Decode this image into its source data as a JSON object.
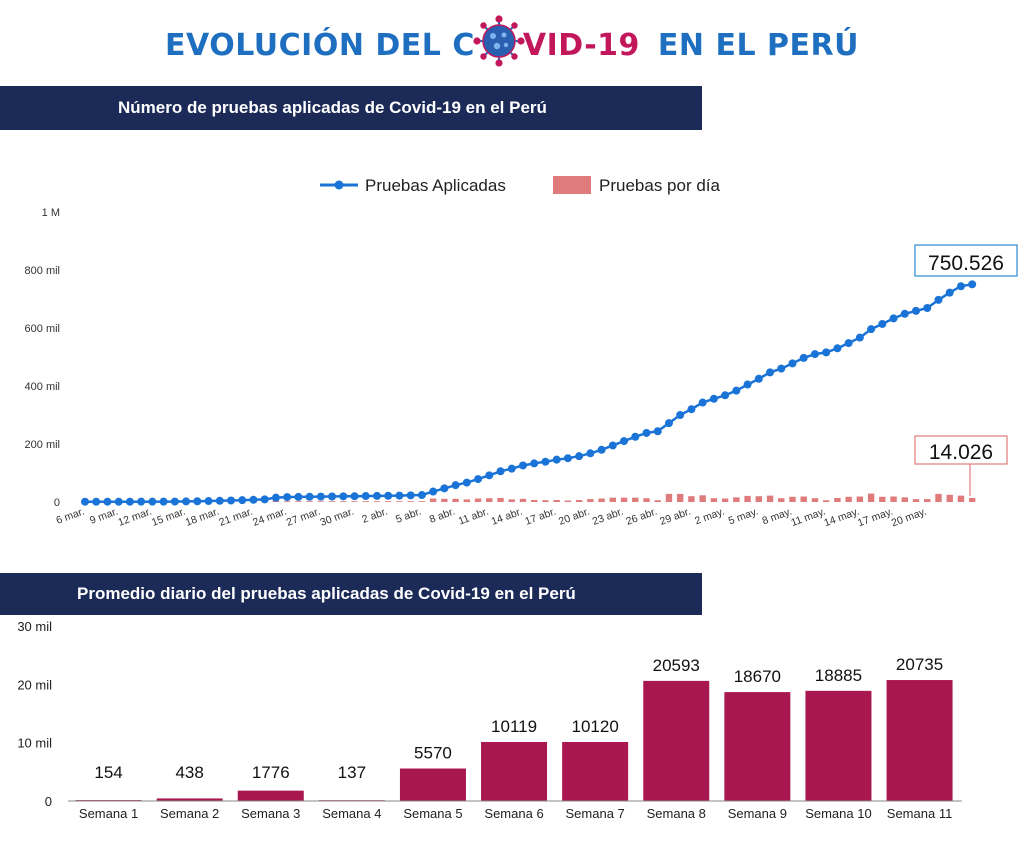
{
  "header": {
    "title_part1": "EVOLUCIÓN DEL C",
    "title_part2": "VID-19",
    "title_part3": "EN EL PERÚ"
  },
  "colors": {
    "navy_band": "#1c2a57",
    "title_blue": "#1f6fc0",
    "title_magenta": "#c2185b",
    "line_blue": "#1a73d6",
    "bar_salmon": "#e07b7b",
    "bar_magenta": "#a8174f"
  },
  "section1": {
    "title": "Número de pruebas aplicadas de Covid-19 en el Perú"
  },
  "section2": {
    "title": "Promedio diario del pruebas  aplicadas de Covid-19 en el Perú"
  },
  "chart_data": [
    {
      "type": "line",
      "title": "Número de pruebas aplicadas de Covid-19 en el Perú",
      "legend": {
        "position": "top",
        "items": [
          {
            "label": "Pruebas Aplicadas",
            "color": "#1a73d6"
          },
          {
            "label": "Pruebas por día",
            "color": "#e07b7b"
          }
        ]
      },
      "y_ticks": [
        "0",
        "200 mil",
        "400 mil",
        "600 mil",
        "800 mil",
        "1 M"
      ],
      "ylim": [
        0,
        1000000
      ],
      "x_tick_labels": [
        "6 mar.",
        "9 mar.",
        "12 mar.",
        "15 mar.",
        "18 mar.",
        "21 mar.",
        "24 mar.",
        "27 mar.",
        "30 mar.",
        "2 abr.",
        "5 abr.",
        "8 abr.",
        "11 abr.",
        "14 abr.",
        "17 abr.",
        "20 abr.",
        "23 abr.",
        "26 abr.",
        "29 abr.",
        "2 may.",
        "5 may.",
        "8 may.",
        "11 may.",
        "14 may.",
        "17 may.",
        "20 may."
      ],
      "annotations": {
        "cumulative_last": "750.526",
        "daily_last": "14.026"
      },
      "series": [
        {
          "name": "Pruebas Aplicadas",
          "kind": "line",
          "values": [
            1000,
            1000,
            1000,
            1000,
            1000,
            1100,
            1200,
            1300,
            1500,
            2000,
            2600,
            3300,
            4200,
            5200,
            6300,
            7600,
            9000,
            15000,
            17000,
            17500,
            18000,
            18500,
            19000,
            19500,
            20000,
            20500,
            21000,
            21500,
            22000,
            23000,
            24000,
            36000,
            47000,
            58000,
            67000,
            79000,
            92000,
            106000,
            115000,
            126000,
            133000,
            139000,
            146000,
            151000,
            158000,
            168000,
            180000,
            195000,
            210000,
            225000,
            238000,
            244000,
            272000,
            300000,
            320000,
            343000,
            356000,
            368000,
            384000,
            405000,
            425000,
            447000,
            460000,
            478000,
            497000,
            510000,
            516000,
            530000,
            548000,
            567000,
            596000,
            614000,
            633000,
            649000,
            659000,
            669000,
            697000,
            722000,
            744000,
            750526
          ]
        },
        {
          "name": "Pruebas por día",
          "kind": "bar",
          "values": [
            0,
            0,
            0,
            0,
            0,
            100,
            100,
            100,
            200,
            500,
            600,
            700,
            900,
            1000,
            1100,
            1300,
            1400,
            6000,
            2000,
            500,
            500,
            500,
            500,
            500,
            500,
            500,
            500,
            500,
            500,
            1000,
            1000,
            12000,
            11000,
            11000,
            9000,
            12000,
            13000,
            14000,
            9000,
            11000,
            7000,
            6000,
            7000,
            5000,
            7000,
            10000,
            12000,
            15000,
            15000,
            15000,
            13000,
            6000,
            28000,
            28000,
            20000,
            23000,
            13000,
            12000,
            16000,
            21000,
            20000,
            22000,
            13000,
            18000,
            19000,
            13000,
            6000,
            14000,
            18000,
            19000,
            29000,
            18000,
            19000,
            16000,
            10000,
            10000,
            28000,
            25000,
            22000,
            14026
          ]
        }
      ]
    },
    {
      "type": "bar",
      "title": "Promedio diario del pruebas  aplicadas de Covid-19 en el Perú",
      "categories": [
        "Semana 1",
        "Semana 2",
        "Semana 3",
        "Semana 4",
        "Semana 5",
        "Semana 6",
        "Semana 7",
        "Semana 8",
        "Semana 9",
        "Semana 10",
        "Semana 11"
      ],
      "values": [
        154,
        438,
        1776,
        137,
        5570,
        10119,
        10120,
        20593,
        18670,
        18885,
        20735
      ],
      "data_labels": [
        "154",
        "438",
        "1776",
        "137",
        "5570",
        "10119",
        "10120",
        "20593",
        "18670",
        "18885",
        "20735"
      ],
      "y_ticks": [
        "0",
        "10 mil",
        "20 mil",
        "30 mil"
      ],
      "ylim": [
        0,
        30000
      ]
    }
  ]
}
